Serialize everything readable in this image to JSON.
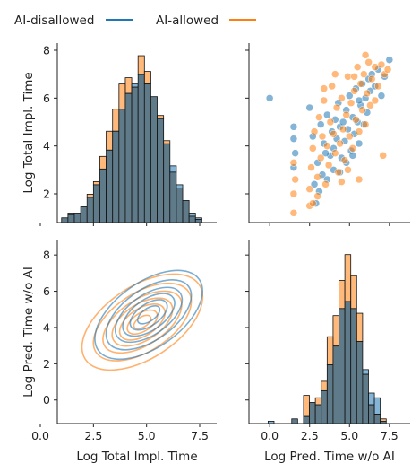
{
  "legend": {
    "items": [
      {
        "label": "AI-disallowed",
        "color": "#1f77b4"
      },
      {
        "label": "AI-allowed",
        "color": "#ff7f0e"
      }
    ]
  },
  "chart_data": {
    "type": "pairplot",
    "series_names": [
      "AI-disallowed",
      "AI-allowed"
    ],
    "colors": {
      "AI-disallowed": "#1f77b4",
      "AI-allowed": "#ff7f0e",
      "overlap": "#5f7a88"
    },
    "variables": {
      "impl": {
        "label": "Log Total Impl. Time",
        "range": [
          0.8,
          8.3
        ]
      },
      "pred": {
        "label": "Log Pred. Time w/o AI",
        "range": [
          -1.3,
          8.8
        ]
      }
    },
    "x_ticks": {
      "impl": [
        "0.0",
        "2.5",
        "5.0",
        "7.5"
      ],
      "pred": [
        "0.0",
        "2.5",
        "5.0",
        "7.5"
      ]
    },
    "y_ticks": {
      "impl": [
        "2",
        "4",
        "6",
        "8"
      ],
      "pred": [
        "0",
        "2",
        "4",
        "6",
        "8"
      ]
    },
    "hist_impl": {
      "bin_edges": [
        1.0,
        1.3,
        1.6,
        1.9,
        2.2,
        2.5,
        2.8,
        3.1,
        3.4,
        3.7,
        4.0,
        4.3,
        4.6,
        4.9,
        5.2,
        5.5,
        5.8,
        6.1,
        6.4,
        6.7,
        7.0,
        7.3,
        7.6
      ],
      "AI-disallowed": [
        0.15,
        0.25,
        0.3,
        0.5,
        0.8,
        1.2,
        1.7,
        2.3,
        2.9,
        3.6,
        4.1,
        4.4,
        4.7,
        4.4,
        4.0,
        3.3,
        2.5,
        1.8,
        1.2,
        0.7,
        0.3,
        0.15
      ],
      "AI-allowed": [
        0.15,
        0.3,
        0.3,
        0.5,
        0.9,
        1.3,
        2.1,
        2.9,
        3.6,
        4.4,
        4.6,
        4.3,
        5.3,
        4.8,
        4.0,
        3.4,
        2.6,
        1.6,
        1.1,
        0.7,
        0.2,
        0.1
      ]
    },
    "hist_pred": {
      "bin_edges": [
        -0.1,
        0.27,
        0.64,
        1.01,
        1.38,
        1.75,
        2.12,
        2.49,
        2.86,
        3.23,
        3.6,
        3.97,
        4.34,
        4.71,
        5.08,
        5.45,
        5.82,
        6.19,
        6.56,
        6.93,
        7.3
      ],
      "AI-disallowed": [
        1.0,
        0.0,
        0.0,
        0.0,
        2.0,
        0.0,
        3.0,
        9.0,
        8.0,
        14.0,
        25.0,
        33.0,
        49.0,
        52.0,
        49.0,
        35.0,
        23.0,
        13.0,
        11.0,
        1.0
      ],
      "AI-allowed": [
        0.0,
        0.0,
        0.0,
        0.0,
        2.0,
        0.0,
        12.0,
        9.0,
        11.0,
        18.0,
        37.0,
        46.0,
        61.0,
        72.0,
        63.0,
        47.0,
        21.0,
        8.0,
        4.0,
        2.0
      ]
    },
    "scatter": {
      "x_var": "pred",
      "y_var": "impl",
      "AI-disallowed": [
        [
          0.0,
          6.0
        ],
        [
          1.5,
          4.3
        ],
        [
          1.5,
          4.8
        ],
        [
          1.6,
          3.7
        ],
        [
          1.5,
          3.1
        ],
        [
          2.5,
          5.6
        ],
        [
          2.7,
          4.4
        ],
        [
          2.9,
          1.6
        ],
        [
          3.2,
          4.9
        ],
        [
          3.4,
          4.1
        ],
        [
          3.6,
          5.3
        ],
        [
          3.8,
          3.6
        ],
        [
          3.9,
          4.6
        ],
        [
          4.0,
          3.9
        ],
        [
          4.1,
          5.1
        ],
        [
          4.2,
          4.3
        ],
        [
          4.3,
          5.8
        ],
        [
          4.4,
          4.8
        ],
        [
          4.5,
          3.5
        ],
        [
          4.6,
          5.0
        ],
        [
          4.7,
          4.2
        ],
        [
          4.8,
          5.5
        ],
        [
          4.9,
          4.7
        ],
        [
          5.0,
          6.1
        ],
        [
          5.1,
          3.8
        ],
        [
          5.2,
          5.2
        ],
        [
          5.3,
          4.5
        ],
        [
          5.4,
          6.4
        ],
        [
          5.5,
          5.0
        ],
        [
          5.6,
          4.1
        ],
        [
          5.7,
          5.7
        ],
        [
          5.8,
          6.6
        ],
        [
          5.9,
          4.9
        ],
        [
          6.0,
          6.0
        ],
        [
          6.1,
          5.4
        ],
        [
          6.2,
          6.8
        ],
        [
          6.3,
          6.3
        ],
        [
          6.4,
          7.0
        ],
        [
          6.6,
          6.5
        ],
        [
          6.8,
          7.2
        ],
        [
          7.0,
          6.1
        ],
        [
          7.2,
          6.9
        ],
        [
          7.5,
          7.6
        ],
        [
          3.0,
          3.3
        ],
        [
          3.3,
          2.8
        ],
        [
          3.6,
          2.6
        ],
        [
          4.0,
          3.0
        ],
        [
          4.4,
          2.9
        ],
        [
          2.8,
          2.4
        ],
        [
          3.1,
          2.1
        ],
        [
          3.5,
          3.7
        ],
        [
          4.8,
          3.3
        ],
        [
          5.2,
          3.6
        ],
        [
          5.6,
          5.9
        ]
      ],
      "AI-allowed": [
        [
          1.5,
          2.0
        ],
        [
          1.5,
          1.2
        ],
        [
          1.6,
          2.6
        ],
        [
          1.5,
          3.3
        ],
        [
          2.5,
          1.5
        ],
        [
          2.5,
          2.2
        ],
        [
          2.6,
          3.1
        ],
        [
          2.7,
          3.9
        ],
        [
          2.8,
          4.6
        ],
        [
          3.0,
          2.7
        ],
        [
          3.1,
          5.2
        ],
        [
          3.2,
          3.5
        ],
        [
          3.3,
          4.4
        ],
        [
          3.4,
          5.9
        ],
        [
          3.5,
          2.4
        ],
        [
          3.6,
          4.0
        ],
        [
          3.7,
          3.2
        ],
        [
          3.8,
          5.0
        ],
        [
          3.9,
          6.5
        ],
        [
          4.0,
          4.5
        ],
        [
          4.1,
          3.7
        ],
        [
          4.2,
          5.6
        ],
        [
          4.3,
          2.9
        ],
        [
          4.4,
          4.1
        ],
        [
          4.5,
          6.0
        ],
        [
          4.6,
          4.7
        ],
        [
          4.7,
          3.4
        ],
        [
          4.8,
          5.3
        ],
        [
          4.9,
          6.9
        ],
        [
          5.0,
          4.4
        ],
        [
          5.1,
          5.8
        ],
        [
          5.2,
          3.9
        ],
        [
          5.3,
          6.3
        ],
        [
          5.4,
          5.1
        ],
        [
          5.5,
          7.3
        ],
        [
          5.6,
          4.6
        ],
        [
          5.7,
          6.6
        ],
        [
          5.8,
          5.5
        ],
        [
          5.9,
          7.0
        ],
        [
          6.0,
          4.9
        ],
        [
          6.1,
          6.2
        ],
        [
          6.2,
          7.5
        ],
        [
          6.3,
          5.7
        ],
        [
          6.4,
          6.8
        ],
        [
          6.6,
          7.3
        ],
        [
          6.8,
          6.5
        ],
        [
          7.0,
          7.4
        ],
        [
          7.2,
          7.0
        ],
        [
          7.4,
          7.2
        ],
        [
          7.1,
          3.6
        ],
        [
          5.6,
          2.6
        ],
        [
          6.0,
          7.8
        ],
        [
          4.5,
          2.5
        ],
        [
          3.0,
          1.9
        ],
        [
          2.7,
          1.6
        ],
        [
          4.9,
          3.0
        ],
        [
          3.4,
          6.4
        ],
        [
          5.3,
          6.9
        ],
        [
          6.6,
          5.9
        ],
        [
          4.1,
          7.0
        ]
      ]
    },
    "kde": {
      "x_var": "impl",
      "y_var": "pred",
      "AI-disallowed": {
        "center": [
          5.1,
          4.7
        ],
        "rx": [
          2.9,
          2.3,
          1.8,
          1.4,
          1.0,
          0.6
        ],
        "ry": [
          1.8,
          1.4,
          1.1,
          0.85,
          0.6,
          0.35
        ],
        "rotation": 35
      },
      "AI-allowed": {
        "center": [
          4.8,
          4.3
        ],
        "rx": [
          3.2,
          2.6,
          2.1,
          1.6,
          1.2,
          0.8,
          0.45
        ],
        "ry": [
          2.0,
          1.6,
          1.25,
          1.0,
          0.75,
          0.5,
          0.28
        ],
        "rotation": 33
      }
    }
  }
}
